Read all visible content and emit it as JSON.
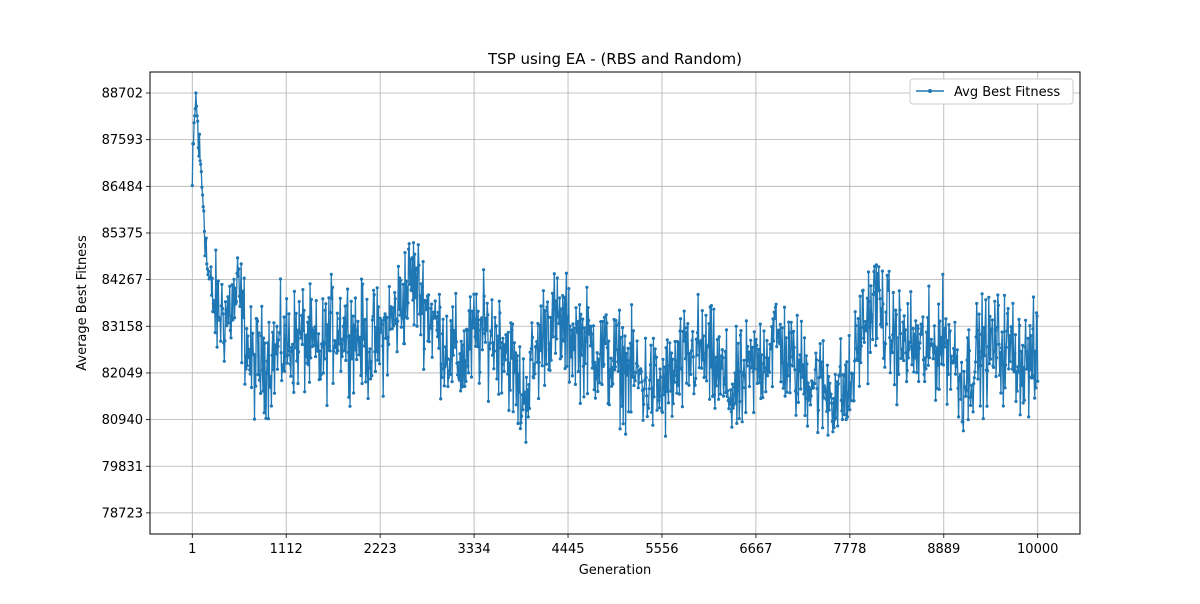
{
  "chart_data": {
    "type": "line",
    "title": "TSP using EA - (RBS and Random)",
    "xlabel": "Generation",
    "ylabel": "Average Best Fitness",
    "x_ticks": [
      "1",
      "1112",
      "2223",
      "3334",
      "4445",
      "5556",
      "6667",
      "7778",
      "8889",
      "10000"
    ],
    "y_ticks": [
      "78723",
      "79831",
      "80940",
      "82049",
      "83158",
      "84267",
      "85375",
      "86484",
      "87593",
      "88702"
    ],
    "xlim": [
      -499,
      10500
    ],
    "ylim": [
      78221,
      89201
    ],
    "grid": true,
    "legend": "top-right",
    "series": [
      {
        "name": "Avg Best Fitness",
        "color": "#1f77b4",
        "marker": "dot",
        "x_start": 1,
        "x_end": 10000,
        "control_points": [
          [
            1,
            86500
          ],
          [
            40,
            88702
          ],
          [
            80,
            87400
          ],
          [
            130,
            86200
          ],
          [
            180,
            84500
          ],
          [
            260,
            83600
          ],
          [
            400,
            83400
          ],
          [
            550,
            83900
          ],
          [
            700,
            82200
          ],
          [
            900,
            82400
          ],
          [
            1112,
            82700
          ],
          [
            1300,
            82900
          ],
          [
            1500,
            82400
          ],
          [
            1700,
            83200
          ],
          [
            1900,
            83000
          ],
          [
            2100,
            82700
          ],
          [
            2223,
            82800
          ],
          [
            2400,
            83400
          ],
          [
            2600,
            84300
          ],
          [
            2800,
            83500
          ],
          [
            3000,
            82700
          ],
          [
            3200,
            82300
          ],
          [
            3334,
            82900
          ],
          [
            3500,
            83000
          ],
          [
            3700,
            82800
          ],
          [
            3900,
            81400
          ],
          [
            4050,
            82300
          ],
          [
            4200,
            83300
          ],
          [
            4445,
            83000
          ],
          [
            4700,
            82700
          ],
          [
            4900,
            82400
          ],
          [
            5100,
            82200
          ],
          [
            5300,
            81900
          ],
          [
            5556,
            81600
          ],
          [
            5800,
            82200
          ],
          [
            6000,
            82600
          ],
          [
            6200,
            82100
          ],
          [
            6400,
            81500
          ],
          [
            6667,
            82200
          ],
          [
            6900,
            82900
          ],
          [
            7100,
            82200
          ],
          [
            7300,
            82000
          ],
          [
            7500,
            81600
          ],
          [
            7778,
            81600
          ],
          [
            7900,
            83000
          ],
          [
            8100,
            83800
          ],
          [
            8300,
            82800
          ],
          [
            8500,
            82700
          ],
          [
            8700,
            82500
          ],
          [
            8889,
            82900
          ],
          [
            9000,
            82500
          ],
          [
            9100,
            81800
          ],
          [
            9300,
            82500
          ],
          [
            9500,
            82700
          ],
          [
            9700,
            82600
          ],
          [
            9850,
            82300
          ],
          [
            10000,
            82300
          ]
        ]
      }
    ]
  }
}
